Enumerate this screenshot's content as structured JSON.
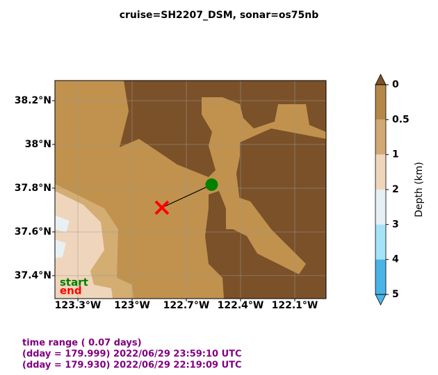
{
  "chart_data": {
    "type": "map",
    "title": "cruise=SH2207_DSM,   sonar=os75nb",
    "xlim": [
      -123.427,
      -121.927
    ],
    "ylim": [
      37.295,
      38.292
    ],
    "xticks": [
      {
        "value": -123.3,
        "label": "123.3°W"
      },
      {
        "value": -123.0,
        "label": "123°W"
      },
      {
        "value": -122.7,
        "label": "122.7°W"
      },
      {
        "value": -122.4,
        "label": "122.4°W"
      },
      {
        "value": -122.1,
        "label": "122.1°W"
      }
    ],
    "yticks": [
      {
        "value": 37.4,
        "label": "37.4°N"
      },
      {
        "value": 37.6,
        "label": "37.6°N"
      },
      {
        "value": 37.8,
        "label": "37.8°N"
      },
      {
        "value": 38.0,
        "label": "38°N"
      },
      {
        "value": 38.2,
        "label": "38.2°N"
      }
    ],
    "grid": true,
    "track": {
      "x": [
        -122.56,
        -122.835
      ],
      "y": [
        37.816,
        37.711
      ],
      "color": "#000000"
    },
    "markers": [
      {
        "label": "start",
        "color": "#008000"
      },
      {
        "label": "end",
        "color": "#ff0000"
      }
    ],
    "colorbar": {
      "label": "Depth (km)",
      "ticks": [
        0,
        0.5,
        1,
        2,
        3,
        4,
        5
      ],
      "colors": [
        "#b5884a",
        "#d2a874",
        "#efd6bb",
        "#e6f0f4",
        "#a4e3f8",
        "#4ab4e6"
      ],
      "extend_colors": [
        "#7b5129",
        "#4ab4e6"
      ]
    },
    "notes": [
      "time range ( 0.07 days)",
      "(dday = 179.999) 2022/06/29 23:59:10 UTC",
      "(dday = 179.930) 2022/06/29 22:19:09 UTC"
    ]
  }
}
